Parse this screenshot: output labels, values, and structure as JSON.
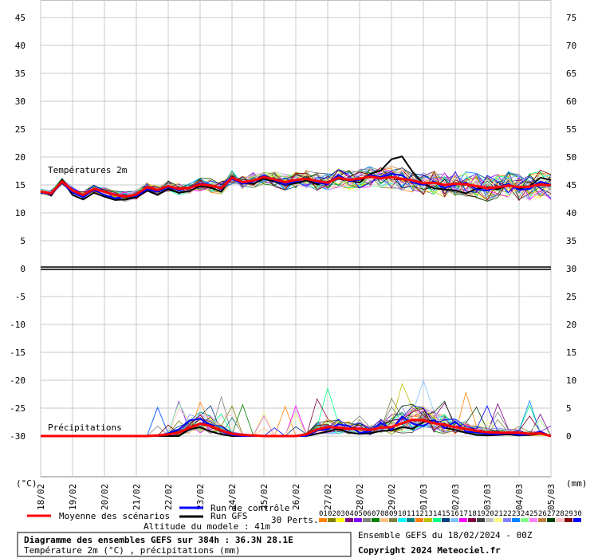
{
  "chart_data": {
    "type": "line",
    "title": "Diagramme des ensembles GEFS sur 384h : 36.3N 28.1E",
    "subtitle": "Température 2m (°C) , précipitations (mm)",
    "left_unit": "(°C)",
    "right_unit": "(mm)",
    "left_ticks": [
      45,
      40,
      35,
      30,
      25,
      20,
      15,
      10,
      5,
      0,
      -5,
      -10,
      -15,
      -20,
      -25,
      -30
    ],
    "right_ticks": [
      75,
      70,
      65,
      60,
      55,
      50,
      45,
      40,
      35,
      30,
      25,
      20,
      15,
      10,
      5,
      0
    ],
    "x_ticks": [
      "18/02",
      "19/02",
      "20/02",
      "21/02",
      "22/02",
      "23/02",
      "24/02",
      "25/02",
      "26/02",
      "27/02",
      "28/02",
      "29/02",
      "01/03",
      "02/03",
      "03/03",
      "04/03",
      "05/03"
    ],
    "annotations": {
      "temp": "Températures 2m",
      "precip": "Précipitations"
    },
    "series": [
      {
        "name": "Moyenne des scénarios",
        "color": "#ff0000",
        "temp": [
          13.8,
          13.5,
          15.6,
          14.0,
          13.2,
          14.3,
          13.8,
          13.2,
          12.9,
          13.3,
          14.6,
          14.1,
          14.8,
          14.3,
          14.5,
          15.1,
          14.9,
          14.4,
          16.3,
          15.5,
          15.8,
          16.4,
          16.0,
          15.5,
          15.9,
          16.1,
          15.7,
          15.4,
          16.3,
          15.9,
          16.1,
          16.5,
          16.2,
          16.4,
          16.1,
          15.8,
          15.3,
          15.4,
          15.0,
          15.2,
          15.1,
          14.8,
          14.4,
          14.6,
          14.9,
          14.6,
          14.7,
          15.1,
          14.9
        ],
        "precip": [
          0,
          0,
          0,
          0,
          0,
          0,
          0,
          0,
          0,
          0,
          0,
          0.1,
          0.3,
          0.6,
          1.5,
          2.2,
          1.8,
          1.0,
          0.4,
          0.2,
          0.1,
          0,
          0,
          0,
          0,
          0.3,
          1.2,
          1.6,
          1.5,
          1.3,
          1.3,
          1.1,
          1.5,
          1.6,
          2.3,
          2.9,
          2.8,
          2.3,
          2.0,
          1.6,
          1.3,
          0.9,
          0.7,
          0.6,
          0.6,
          0.6,
          0.4,
          0.5,
          0
        ]
      },
      {
        "name": "Run de contrôle",
        "color": "#0000ff",
        "temp": [
          13.7,
          13.3,
          15.4,
          13.6,
          12.8,
          14.1,
          13.2,
          12.6,
          13.1,
          13.0,
          14.2,
          13.8,
          14.6,
          14.1,
          14.6,
          15.3,
          15.0,
          14.2,
          16.1,
          15.2,
          15.6,
          16.7,
          15.8,
          15.1,
          15.6,
          16.2,
          15.4,
          15.1,
          16.8,
          15.7,
          15.9,
          16.8,
          16.4,
          17.0,
          16.7,
          15.4,
          15.0,
          15.6,
          14.5,
          15.0,
          15.4,
          14.2,
          14.0,
          14.6,
          15.2,
          14.1,
          14.3,
          15.6,
          15.0
        ],
        "precip": [
          0,
          0,
          0,
          0,
          0,
          0,
          0,
          0,
          0,
          0,
          0,
          0,
          0.5,
          1.2,
          2.8,
          3.1,
          2.0,
          0.9,
          0.2,
          0,
          0,
          0,
          0,
          0,
          0,
          0,
          1.0,
          1.2,
          2.1,
          1.8,
          0.6,
          0.8,
          2.4,
          1.1,
          3.5,
          2.2,
          1.8,
          2.9,
          1.4,
          2.6,
          0.8,
          0.6,
          0.4,
          0.3,
          0.5,
          0.2,
          0.3,
          0.8,
          0
        ]
      },
      {
        "name": "Run GFS",
        "color": "#000000",
        "temp": [
          13.9,
          13.1,
          15.8,
          13.2,
          12.4,
          13.6,
          12.9,
          12.3,
          12.4,
          12.8,
          14.0,
          13.2,
          14.3,
          13.6,
          13.9,
          14.8,
          14.5,
          13.8,
          16.5,
          15.3,
          15.2,
          16.1,
          15.6,
          15.0,
          15.3,
          15.8,
          15.1,
          15.6,
          16.1,
          15.8,
          15.4,
          17.0,
          17.6,
          19.6,
          20.1,
          17.3,
          15.2,
          14.4,
          14.2,
          14.0,
          13.5,
          14.3,
          14.6,
          14.2,
          15.0,
          14.3,
          14.8,
          16.3,
          15.9
        ],
        "precip": [
          0,
          0,
          0,
          0,
          0,
          0,
          0,
          0,
          0,
          0,
          0,
          0,
          0,
          0,
          1.2,
          1.6,
          0.8,
          0.3,
          0,
          0,
          0,
          0,
          0,
          0,
          0,
          0,
          0.4,
          0.8,
          1.3,
          0.6,
          0.4,
          0.5,
          0.9,
          1.0,
          1.6,
          1.3,
          2.5,
          2.8,
          1.5,
          1.1,
          0.6,
          0.2,
          0.1,
          0.2,
          0.3,
          0.1,
          0.2,
          0.4,
          0
        ]
      }
    ],
    "n_perturbations": 30,
    "pert_colors": [
      "#ff8000",
      "#808000",
      "#ffff00",
      "#800080",
      "#8000ff",
      "#808080",
      "#008000",
      "#ffc080",
      "#808040",
      "#00ffff",
      "#008080",
      "#ff8000",
      "#c0c000",
      "#00ff80",
      "#004080",
      "#80c0ff",
      "#ff00ff",
      "#800040",
      "#404040",
      "#c0c0c0",
      "#ffff80",
      "#8080ff",
      "#0080ff",
      "#80ff80",
      "#ff80ff",
      "#c08040",
      "#004000",
      "#ffc0c0",
      "#800000",
      "#0000ff"
    ]
  },
  "legend": {
    "mean_label": "Moyenne des scénarios",
    "control_label": "Run de contrôle",
    "gfs_label": "Run GFS",
    "perts_label": "30 Perts.",
    "pert_numbers": [
      "01",
      "02",
      "03",
      "04",
      "05",
      "06",
      "07",
      "08",
      "09",
      "10",
      "11",
      "12",
      "13",
      "14",
      "15",
      "16",
      "17",
      "18",
      "19",
      "20",
      "21",
      "22",
      "23",
      "24",
      "25",
      "26",
      "27",
      "28",
      "29",
      "30"
    ]
  },
  "footer": {
    "altitude": "Altitude du modele : 41m",
    "ensemble_date": "Ensemble GEFS du 18/02/2024 - 00Z",
    "copyright": "Copyright 2024 Meteociel.fr"
  }
}
